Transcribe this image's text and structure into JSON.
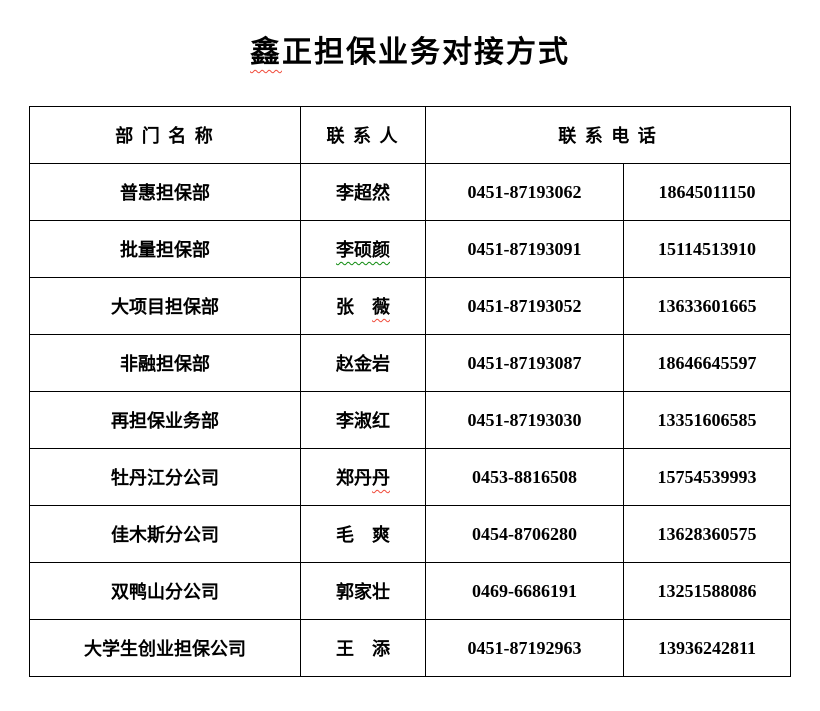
{
  "title": {
    "full_text": "鑫正担保业务对接方式",
    "segments": [
      {
        "text": "鑫",
        "mark": "spellcheck_red"
      },
      {
        "text": "正担保业务对接方式"
      }
    ]
  },
  "table": {
    "headers": {
      "department": "部 门 名 称",
      "contact": "联 系 人",
      "phone": "联 系 电 话"
    },
    "rows": [
      {
        "department": "普惠担保部",
        "contact": [
          {
            "text": "李超然"
          }
        ],
        "office_phone": "0451-87193062",
        "mobile_phone": "18645011150"
      },
      {
        "department": "批量担保部",
        "contact": [
          {
            "text": "李硕颜",
            "mark": "grammar_green"
          }
        ],
        "office_phone": "0451-87193091",
        "mobile_phone": "15114513910"
      },
      {
        "department": "大项目担保部",
        "contact": [
          {
            "text": "张　"
          },
          {
            "text": "薇",
            "mark": "spellcheck_red"
          }
        ],
        "office_phone": "0451-87193052",
        "mobile_phone": "13633601665"
      },
      {
        "department": "非融担保部",
        "contact": [
          {
            "text": "赵金岩"
          }
        ],
        "office_phone": "0451-87193087",
        "mobile_phone": "18646645597"
      },
      {
        "department": "再担保业务部",
        "contact": [
          {
            "text": "李淑红"
          }
        ],
        "office_phone": "0451-87193030",
        "mobile_phone": "13351606585"
      },
      {
        "department": "牡丹江分公司",
        "contact": [
          {
            "text": "郑丹"
          },
          {
            "text": "丹",
            "mark": "spellcheck_red"
          }
        ],
        "office_phone": "0453-8816508",
        "mobile_phone": "15754539993"
      },
      {
        "department": "佳木斯分公司",
        "contact": [
          {
            "text": "毛　爽"
          }
        ],
        "office_phone": "0454-8706280",
        "mobile_phone": "13628360575"
      },
      {
        "department": "双鸭山分公司",
        "contact": [
          {
            "text": "郭家壮"
          }
        ],
        "office_phone": "0469-6686191",
        "mobile_phone": "13251588086"
      },
      {
        "department": "大学生创业担保公司",
        "contact": [
          {
            "text": "王　添"
          }
        ],
        "office_phone": "0451-87192963",
        "mobile_phone": "13936242811"
      }
    ]
  },
  "colors": {
    "background": "#ffffff",
    "text": "#000000",
    "border": "#000000",
    "spellcheck_red": "#f04a3a",
    "grammar_green": "#0e8a0e"
  }
}
